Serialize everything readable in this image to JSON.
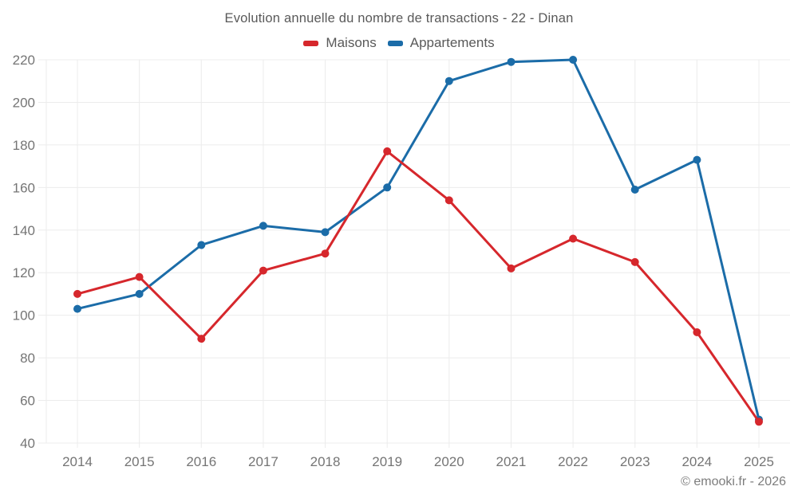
{
  "title": "Evolution annuelle du nombre de transactions - 22 - Dinan",
  "footer_credit": "© emooki.fr - 2026",
  "colors": {
    "maisons": "#d6272c",
    "appartements": "#1b6ca8",
    "grid": "#ececec",
    "tick_text": "#757575",
    "title_text": "#595959"
  },
  "chart_data": {
    "type": "line",
    "title": "Evolution annuelle du nombre de transactions - 22 - Dinan",
    "categories": [
      "2014",
      "2015",
      "2016",
      "2017",
      "2018",
      "2019",
      "2020",
      "2021",
      "2022",
      "2023",
      "2024",
      "2025"
    ],
    "series": [
      {
        "name": "Maisons",
        "color": "#d6272c",
        "values": [
          110,
          118,
          89,
          121,
          129,
          177,
          154,
          122,
          136,
          125,
          92,
          50
        ]
      },
      {
        "name": "Appartements",
        "color": "#1b6ca8",
        "values": [
          103,
          110,
          133,
          142,
          139,
          160,
          210,
          219,
          220,
          159,
          173,
          51
        ]
      }
    ],
    "xlabel": "",
    "ylabel": "",
    "ylim": [
      40,
      220
    ],
    "ytick_step": 20,
    "grid": true,
    "legend_position": "top"
  }
}
